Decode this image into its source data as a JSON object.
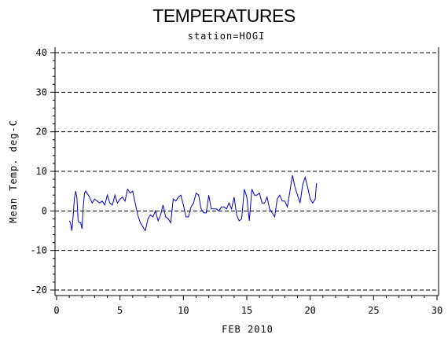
{
  "chart_data": {
    "type": "line",
    "title": "TEMPERATURES",
    "subtitle": "station=HOGI",
    "xlabel": "FEB 2010",
    "ylabel": "Mean Temp. deg-C",
    "xlim": [
      0,
      30
    ],
    "ylim": [
      -20,
      40
    ],
    "xticks": [
      0,
      5,
      10,
      15,
      20,
      25,
      30
    ],
    "yticks": [
      -20,
      -10,
      0,
      10,
      20,
      30,
      40
    ],
    "grid": "horizontal dashed at major y ticks",
    "colors": {
      "series": "#0000cc",
      "axis": "#000000",
      "grid": "#000000"
    },
    "series": [
      {
        "x": [
          1.0,
          1.1,
          1.2,
          1.3,
          1.4,
          1.5,
          1.6,
          1.7,
          1.8,
          1.9,
          2.0,
          2.1,
          2.2,
          2.3,
          2.4,
          2.5,
          2.6,
          2.8,
          3.0,
          3.2,
          3.4,
          3.6,
          3.8,
          4.0,
          4.2,
          4.4,
          4.6,
          4.8,
          5.0,
          5.2,
          5.4,
          5.6,
          5.8,
          6.0,
          6.2,
          6.4,
          6.6,
          6.8,
          7.0,
          7.2,
          7.4,
          7.6,
          7.8,
          8.0,
          8.2,
          8.4,
          8.6,
          8.8,
          9.0,
          9.2,
          9.4,
          9.6,
          9.8,
          10.0,
          10.2,
          10.4,
          10.6,
          10.8,
          11.0,
          11.2,
          11.4,
          11.6,
          11.8,
          12.0,
          12.2,
          12.4,
          12.6,
          12.8,
          13.0,
          13.2,
          13.4,
          13.6,
          13.8,
          14.0,
          14.2,
          14.4,
          14.6,
          14.8,
          15.0,
          15.2,
          15.4,
          15.6,
          15.8,
          16.0,
          16.2,
          16.4,
          16.6,
          16.8,
          17.0,
          17.2,
          17.4,
          17.6,
          17.8,
          18.0,
          18.2,
          18.4,
          18.6,
          18.8,
          19.0,
          19.2,
          19.4,
          19.6,
          19.8,
          20.0,
          20.2,
          20.4,
          20.5
        ],
        "y": [
          -2.5,
          -3.0,
          -5.0,
          -1.5,
          3.0,
          5.0,
          3.5,
          -2.5,
          -3.0,
          -3.0,
          -4.5,
          1.0,
          4.5,
          5.0,
          4.5,
          4.0,
          3.5,
          2.0,
          3.0,
          2.5,
          2.0,
          2.5,
          1.5,
          4.0,
          2.0,
          1.5,
          4.0,
          2.0,
          3.0,
          3.5,
          2.5,
          5.5,
          4.5,
          5.0,
          2.0,
          -1.0,
          -3.0,
          -4.0,
          -5.0,
          -2.0,
          -1.0,
          -1.5,
          0.0,
          -2.5,
          -1.0,
          1.5,
          -1.5,
          -2.0,
          -3.0,
          3.0,
          2.5,
          3.5,
          4.0,
          1.5,
          -1.5,
          -1.5,
          1.0,
          2.0,
          4.5,
          4.0,
          0.5,
          -0.5,
          -0.5,
          4.0,
          0.5,
          0.5,
          0.5,
          0.0,
          1.0,
          1.0,
          0.5,
          2.0,
          0.5,
          3.5,
          -1.0,
          -2.5,
          -2.0,
          5.5,
          3.5,
          -2.5,
          5.5,
          4.0,
          4.0,
          4.5,
          2.0,
          2.0,
          3.5,
          0.5,
          -0.5,
          -1.5,
          3.0,
          4.0,
          2.5,
          2.5,
          1.0,
          5.0,
          9.0,
          6.0,
          4.0,
          2.0,
          6.5,
          8.5,
          6.0,
          3.0,
          2.0,
          3.0,
          7.0
        ]
      }
    ]
  }
}
